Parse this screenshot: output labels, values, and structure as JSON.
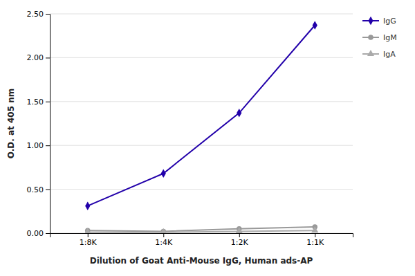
{
  "chart_data": {
    "type": "line",
    "xlabel": "Dilution of Goat Anti-Mouse IgG, Human ads-AP",
    "ylabel": "O.D. at 405 nm",
    "categories": [
      "1:8K",
      "1:4K",
      "1:2K",
      "1:1K"
    ],
    "series": [
      {
        "name": "IgG",
        "color": "#2200aa",
        "marker": "diamond",
        "values": [
          0.31,
          0.68,
          1.37,
          2.37
        ]
      },
      {
        "name": "IgM",
        "color": "#999999",
        "marker": "circle",
        "values": [
          0.03,
          0.02,
          0.05,
          0.07
        ]
      },
      {
        "name": "IgA",
        "color": "#aaaaaa",
        "marker": "triangle",
        "values": [
          0.01,
          0.01,
          0.02,
          0.03
        ]
      }
    ],
    "ylim": [
      0.0,
      2.5
    ],
    "yticks": [
      {
        "value": 0.0,
        "label": "0.00"
      },
      {
        "value": 0.5,
        "label": "0.50"
      },
      {
        "value": 1.0,
        "label": "1.00"
      },
      {
        "value": 1.5,
        "label": "1.50"
      },
      {
        "value": 2.0,
        "label": "2.00"
      },
      {
        "value": 2.5,
        "label": "2.50"
      }
    ],
    "grid": true,
    "legend": "right"
  }
}
